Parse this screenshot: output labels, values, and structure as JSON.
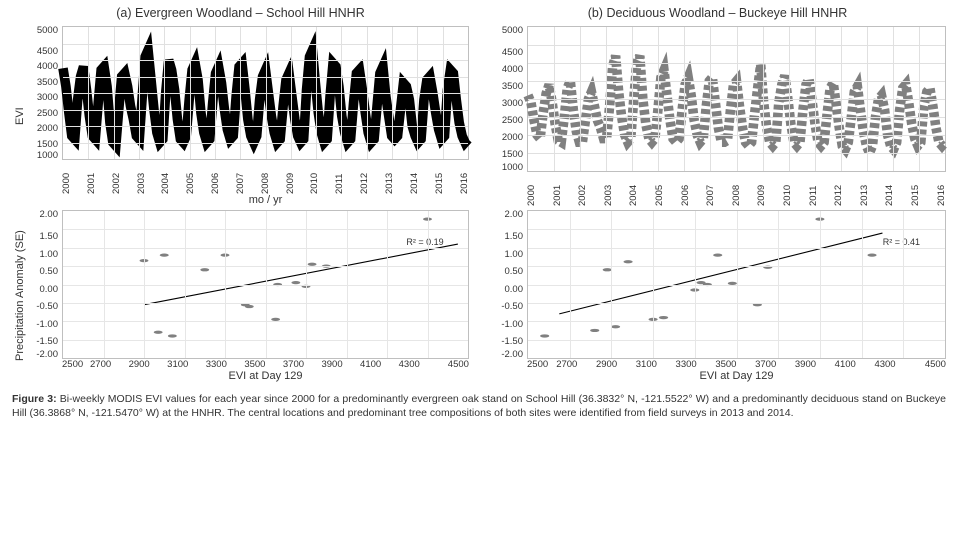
{
  "figure": {
    "panels": {
      "a": {
        "title": "(a) Evergreen Woodland – School Hill HNHR",
        "timeseries": {
          "type": "line",
          "ylabel": "EVI",
          "xlabel": "mo / yr",
          "ylim": [
            1000,
            5000
          ],
          "yticks": [
            5000,
            4500,
            4000,
            3500,
            3000,
            2500,
            2000,
            1500,
            1000
          ],
          "xticks": [
            "2000",
            "2001",
            "2002",
            "2003",
            "2004",
            "2005",
            "2006",
            "2007",
            "2008",
            "2009",
            "2010",
            "2011",
            "2012",
            "2013",
            "2014",
            "2015",
            "2016"
          ],
          "line_color": "#000000",
          "line_width": 1.2,
          "dash": "none",
          "background_color": "#ffffff",
          "grid_color": "#e0e0e0",
          "values": [
            3750,
            3200,
            2400,
            1700,
            1600,
            2800,
            3500,
            3800,
            3100,
            2300,
            1700,
            1600,
            2700,
            3700,
            3800,
            3200,
            2100,
            1500,
            1400,
            2500,
            3500,
            3600,
            3200,
            2600,
            2200,
            1700,
            1600,
            2900,
            4100,
            4300,
            3400,
            2500,
            1800,
            1500,
            1600,
            3000,
            4000,
            3700,
            3100,
            2200,
            1600,
            1500,
            1700,
            2800,
            3700,
            3900,
            3400,
            2400,
            1800,
            1500,
            1600,
            2700,
            3600,
            3800,
            3300,
            2500,
            1900,
            1600,
            1700,
            2900,
            3800,
            3900,
            3100,
            2200,
            1700,
            1500,
            1700,
            2800,
            3500,
            3700,
            3000,
            2300,
            1800,
            1500,
            1600,
            2600,
            3400,
            3600,
            2900,
            2200,
            1700,
            1500,
            1600,
            3100,
            4100,
            4300,
            3300,
            2400,
            1800,
            1500,
            1600,
            2900,
            3900,
            3800,
            3200,
            2300,
            1800,
            1500,
            1600,
            2700,
            3600,
            3700,
            3100,
            2400,
            1800,
            1500,
            1600,
            2600,
            3600,
            3800,
            2900,
            2300,
            1700,
            1600,
            1700,
            2500,
            3300,
            3200,
            2800,
            2000,
            1700,
            1500,
            1600,
            2800,
            3400,
            3500,
            3000,
            2400,
            1900,
            1600,
            1700,
            3100,
            3700,
            3600,
            2800,
            2100,
            1700,
            1500,
            1600
          ]
        },
        "scatter": {
          "type": "scatter",
          "ylabel": "Precipitation Anomaly (SE)",
          "xlabel": "EVI at Day 129",
          "xlim": [
            2500,
            4500
          ],
          "ylim": [
            -2.0,
            2.0
          ],
          "xticks": [
            2500,
            2700,
            2900,
            3100,
            3300,
            3500,
            3700,
            3900,
            4100,
            4300,
            4500
          ],
          "yticks": [
            "2.00",
            "1.50",
            "1.00",
            "0.50",
            "0.00",
            "-0.50",
            "-1.00",
            "-1.50",
            "-2.00"
          ],
          "marker_color": "#808080",
          "marker_size": 5,
          "grid_color": "#e6e6e6",
          "background_color": "#ffffff",
          "r_squared_label": "R² = 0.19",
          "fit": {
            "slope": 0.001,
            "x0": 2900,
            "y0": -0.55,
            "x1": 4450,
            "y1": 1.1,
            "color": "#000000",
            "width": 1.1
          },
          "points": [
            [
              2900,
              0.65
            ],
            [
              3000,
              0.8
            ],
            [
              2970,
              -1.3
            ],
            [
              3040,
              -1.4
            ],
            [
              3200,
              0.4
            ],
            [
              3300,
              0.8
            ],
            [
              3400,
              -0.55
            ],
            [
              3420,
              -0.6
            ],
            [
              3550,
              -0.95
            ],
            [
              3560,
              0.0
            ],
            [
              3650,
              0.05
            ],
            [
              3700,
              -0.05
            ],
            [
              3730,
              0.55
            ],
            [
              3800,
              0.5
            ],
            [
              4300,
              1.78
            ]
          ]
        }
      },
      "b": {
        "title": "(b) Deciduous Woodland – Buckeye Hill HNHR",
        "timeseries": {
          "type": "line",
          "ylabel": "",
          "xlabel": "",
          "ylim": [
            1000,
            5000
          ],
          "yticks": [
            5000,
            4500,
            4000,
            3500,
            3000,
            2500,
            2000,
            1500,
            1000
          ],
          "xticks": [
            "2000",
            "2001",
            "2002",
            "2003",
            "2004",
            "2005",
            "2006",
            "2007",
            "2008",
            "2009",
            "2010",
            "2011",
            "2012",
            "2013",
            "2014",
            "2015",
            "2016"
          ],
          "line_color": "#808080",
          "line_width": 1.2,
          "dash": "5,3",
          "background_color": "#ffffff",
          "grid_color": "#e0e0e0",
          "values": [
            3100,
            2900,
            2400,
            2000,
            1900,
            2600,
            3150,
            3400,
            2900,
            2300,
            1850,
            1800,
            2500,
            3300,
            3500,
            2700,
            2100,
            1800,
            1800,
            2400,
            3000,
            3200,
            2800,
            2400,
            2200,
            1900,
            1900,
            2800,
            3900,
            4200,
            3200,
            2500,
            2000,
            1800,
            1900,
            3000,
            4000,
            4200,
            3000,
            2300,
            1900,
            1800,
            1900,
            2700,
            3600,
            3800,
            3100,
            2400,
            1900,
            1800,
            1900,
            2700,
            3400,
            3600,
            3100,
            2400,
            2000,
            1800,
            1900,
            2800,
            3500,
            3600,
            2900,
            2200,
            1800,
            1800,
            1850,
            2700,
            3400,
            3500,
            2800,
            2200,
            1800,
            1700,
            1800,
            2600,
            3300,
            3950,
            2900,
            2200,
            1800,
            1700,
            1800,
            2900,
            3400,
            3650,
            3000,
            2300,
            1800,
            1700,
            1800,
            2700,
            3400,
            3550,
            2950,
            2300,
            1800,
            1700,
            1800,
            2600,
            3300,
            3450,
            2850,
            2200,
            1700,
            1600,
            1800,
            2500,
            3200,
            3350,
            2700,
            2100,
            1700,
            1500,
            1700,
            2500,
            3000,
            3100,
            2700,
            2000,
            1700,
            1600,
            1800,
            2700,
            3300,
            3400,
            2900,
            2300,
            1900,
            1700,
            1800,
            2800,
            3200,
            3300,
            2800,
            2200,
            1800,
            1700,
            1800
          ]
        },
        "scatter": {
          "type": "scatter",
          "ylabel": "",
          "xlabel": "EVI at Day 129",
          "xlim": [
            2500,
            4500
          ],
          "ylim": [
            -2.0,
            2.0
          ],
          "xticks": [
            2500,
            2700,
            2900,
            3100,
            3300,
            3500,
            3700,
            3900,
            4100,
            4300,
            4500
          ],
          "yticks": [
            "2.00",
            "1.50",
            "1.00",
            "0.50",
            "0.00",
            "-0.50",
            "-1.00",
            "-1.50",
            "-2.00"
          ],
          "marker_color": "#808080",
          "marker_size": 5,
          "grid_color": "#e6e6e6",
          "background_color": "#ffffff",
          "r_squared_label": "R² = 0.41",
          "fit": {
            "x0": 2650,
            "y0": -0.8,
            "x1": 4200,
            "y1": 1.4,
            "color": "#000000",
            "width": 1.1
          },
          "points": [
            [
              2580,
              -1.4
            ],
            [
              2820,
              -1.25
            ],
            [
              2920,
              -1.15
            ],
            [
              2880,
              0.4
            ],
            [
              2980,
              0.62
            ],
            [
              3100,
              -0.95
            ],
            [
              3150,
              -0.9
            ],
            [
              3300,
              -0.15
            ],
            [
              3330,
              0.05
            ],
            [
              3360,
              0.0
            ],
            [
              3410,
              0.8
            ],
            [
              3480,
              0.03
            ],
            [
              3600,
              -0.55
            ],
            [
              3650,
              0.47
            ],
            [
              3900,
              1.78
            ],
            [
              4150,
              0.8
            ]
          ]
        }
      }
    },
    "caption_bold": "Figure 3:",
    "caption_text": " Bi-weekly MODIS EVI values for each year since 2000 for a predominantly evergreen oak stand on School Hill (36.3832° N, -121.5522° W) and a predominantly deciduous stand on Buckeye Hill (36.3868° N, -121.5470° W) at the HNHR. The central locations and predominant tree compositions of both sites were identified from field surveys in 2013 and 2014."
  }
}
